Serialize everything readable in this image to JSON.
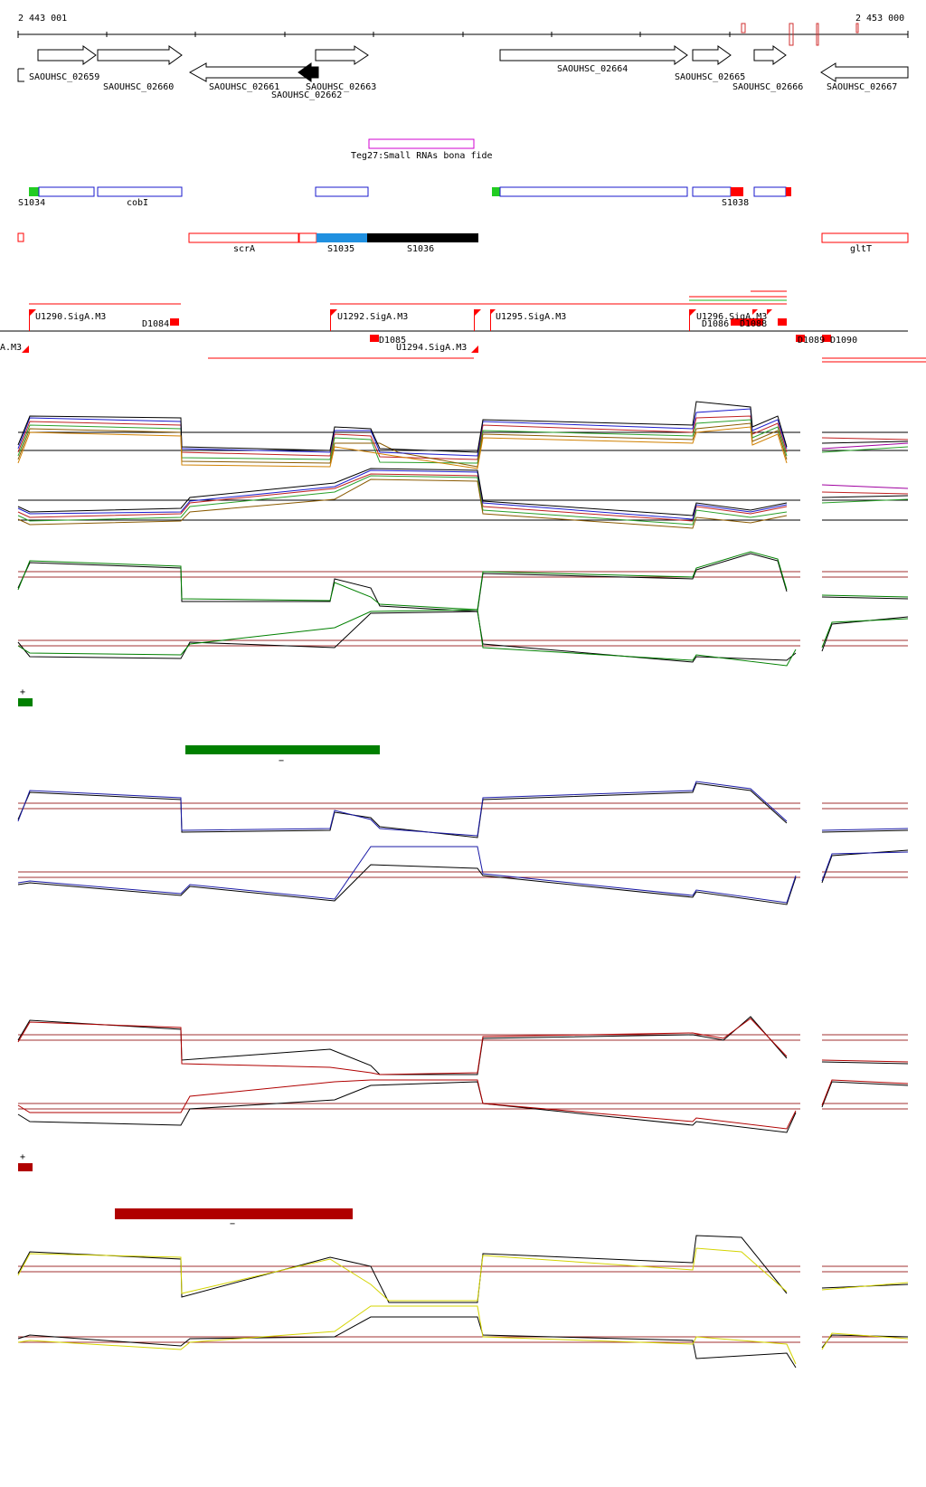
{
  "axis": {
    "start_label": "2 443 001",
    "end_label": "2 453 000"
  },
  "genes": {
    "labels": [
      "SAOUHSC_02659",
      "SAOUHSC_02660",
      "SAOUHSC_02661",
      "SAOUHSC_02662",
      "SAOUHSC_02663",
      "SAOUHSC_02664",
      "SAOUHSC_02665",
      "SAOUHSC_02666",
      "SAOUHSC_02667"
    ]
  },
  "srna": {
    "label": "Teg27:Small RNAs bona fide"
  },
  "segments": {
    "labels": [
      "S1034",
      "cobI",
      "S1038"
    ]
  },
  "features": {
    "labels": [
      "scrA",
      "S1035",
      "S1036",
      "gltT"
    ]
  },
  "promoters": {
    "up_labels": [
      "U1290.SigA.M3",
      "U1292.SigA.M3",
      "U1295.SigA.M3",
      "U1296.SigA.M3"
    ],
    "down_labels": [
      "D1084",
      "D1085",
      "D1086",
      "D1088",
      "D1089",
      "D1090"
    ],
    "other_labels": [
      "A.M3",
      "U1294.SigA.M3"
    ]
  },
  "tracks": {
    "green_plus": "+",
    "green_minus": "−",
    "red_plus": "+",
    "red_minus": "−"
  },
  "colors": {
    "green": "#008000",
    "blue": "#1a1aa6",
    "red": "#b00000",
    "yellow": "#d4d400",
    "purple": "#d000d0",
    "promoter": "#ff0000",
    "s1035": "#1e90ff"
  }
}
